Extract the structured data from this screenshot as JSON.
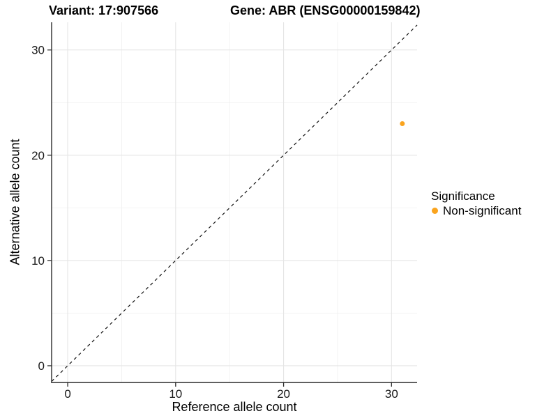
{
  "header": {
    "variant_title": "Variant: 17:907566",
    "gene_title": "Gene: ABR (ENSG00000159842)"
  },
  "chart_data": {
    "type": "scatter",
    "title_left": "Variant: 17:907566",
    "title_right": "Gene: ABR (ENSG00000159842)",
    "xlabel": "Reference allele count",
    "ylabel": "Alternative allele count",
    "xlim": [
      -1.49,
      32.37
    ],
    "ylim": [
      -1.59,
      32.63
    ],
    "x_major_ticks": [
      0,
      10,
      20,
      30
    ],
    "y_major_ticks": [
      0,
      10,
      20,
      30
    ],
    "x_minor_ticks": [
      5,
      15,
      25
    ],
    "y_minor_ticks": [
      5,
      15,
      25
    ],
    "grid": "major+minor",
    "legend_position": "right",
    "series": [
      {
        "name": "Non-significant",
        "color": "#FAA41E",
        "points": [
          {
            "x": 31,
            "y": 23
          }
        ]
      }
    ],
    "reference_line": {
      "slope": 1,
      "intercept": 0,
      "style": "dashed",
      "color": "#111111"
    },
    "legend": {
      "title": "Significance",
      "items": [
        {
          "label": "Non-significant",
          "color": "#FAA41E"
        }
      ]
    }
  },
  "style": {
    "background": "#FFFFFF",
    "grid_major_color": "#E5E5E5",
    "grid_minor_color": "#F1F1F1",
    "axis_line_color": "#2B2B2B",
    "tick_color": "#2B2B2B",
    "tick_label_color": "#1A1A1A",
    "title_color": "#000000",
    "point_color": "#FAA41E"
  }
}
